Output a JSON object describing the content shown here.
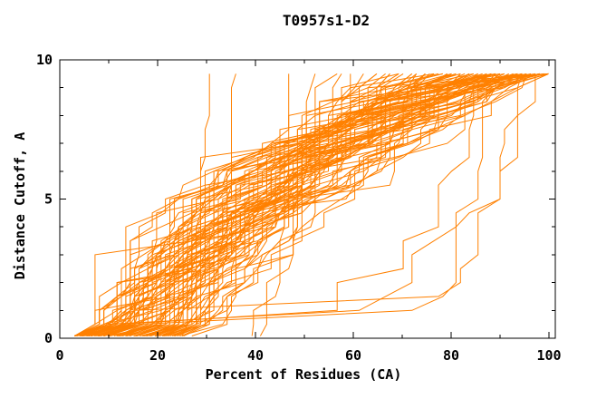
{
  "window": {
    "title": "T0957s1-D2"
  },
  "colors": {
    "curve": "#ff8000",
    "axis": "#000000",
    "background": "#ffffff",
    "text": "#000000"
  },
  "chart_data": {
    "type": "line",
    "title": "T0957s1-D2",
    "xlabel": "Percent of Residues (CA)",
    "ylabel": "Distance Cutoff, A",
    "xlim": [
      0,
      101.3
    ],
    "ylim": [
      0,
      10
    ],
    "x_major_ticks": [
      0,
      20,
      40,
      60,
      80,
      100
    ],
    "x_minor_ticks": [
      10,
      30,
      50,
      70,
      90
    ],
    "y_major_ticks": [
      0,
      5,
      10
    ],
    "y_minor_ticks": [
      1,
      2,
      3,
      4,
      6,
      7,
      8,
      9
    ],
    "grid": false,
    "legend": false,
    "series_color": "#ff8000",
    "cutoff_start": 0.5,
    "cutoff_end": 9.5,
    "cutoff_step": 0.5,
    "percent_quantum": 0.9,
    "curves_note": "Each curve is one model's GDT profile encoded as [percent_at_cutoff_0.5, percent_at_cutoff_9.5, shape_exponent]; step detail is deterministic from curve index.",
    "curves": [
      [
        7,
        80,
        1.2
      ],
      [
        8,
        85,
        1.4
      ],
      [
        8,
        90,
        1.1
      ],
      [
        9,
        78,
        1.6
      ],
      [
        9,
        95,
        1.3
      ],
      [
        10,
        70,
        1.0
      ],
      [
        10,
        88,
        1.8
      ],
      [
        10,
        97,
        1.5
      ],
      [
        11,
        75,
        1.2
      ],
      [
        11,
        92,
        2.0
      ],
      [
        12,
        68,
        0.9
      ],
      [
        12,
        85,
        1.5
      ],
      [
        12,
        99,
        1.7
      ],
      [
        13,
        80,
        1.1
      ],
      [
        13,
        90,
        1.9
      ],
      [
        14,
        73,
        1.3
      ],
      [
        14,
        95,
        1.6
      ],
      [
        15,
        65,
        0.8
      ],
      [
        15,
        85,
        1.2
      ],
      [
        15,
        100,
        1.8
      ],
      [
        16,
        78,
        1.4
      ],
      [
        16,
        92,
        1.0
      ],
      [
        17,
        70,
        1.7
      ],
      [
        17,
        88,
        1.3
      ],
      [
        18,
        82,
        1.5
      ],
      [
        18,
        96,
        1.1
      ],
      [
        19,
        75,
        1.9
      ],
      [
        19,
        90,
        1.4
      ],
      [
        20,
        68,
        1.0
      ],
      [
        20,
        85,
        1.6
      ],
      [
        20,
        100,
        1.2
      ],
      [
        21,
        80,
        1.8
      ],
      [
        21,
        94,
        1.3
      ],
      [
        22,
        72,
        1.1
      ],
      [
        22,
        88,
        1.5
      ],
      [
        23,
        78,
        2.0
      ],
      [
        23,
        97,
        1.4
      ],
      [
        24,
        70,
        1.2
      ],
      [
        24,
        86,
        1.7
      ],
      [
        25,
        92,
        1.0
      ],
      [
        25,
        80,
        1.5
      ],
      [
        26,
        75,
        1.3
      ],
      [
        26,
        90,
        1.8
      ],
      [
        27,
        84,
        1.1
      ],
      [
        27,
        98,
        1.5
      ],
      [
        28,
        78,
        1.9
      ],
      [
        28,
        92,
        1.2
      ],
      [
        29,
        86,
        1.6
      ],
      [
        30,
        80,
        1.0
      ],
      [
        30,
        95,
        1.4
      ],
      [
        31,
        88,
        1.8
      ],
      [
        32,
        82,
        1.2
      ],
      [
        9,
        82,
        1.4
      ],
      [
        11,
        86,
        1.0
      ],
      [
        13,
        94,
        1.6
      ],
      [
        15,
        76,
        1.8
      ],
      [
        17,
        96,
        1.2
      ],
      [
        19,
        84,
        1.4
      ],
      [
        21,
        76,
        1.0
      ],
      [
        23,
        90,
        1.6
      ],
      [
        25,
        98,
        1.8
      ],
      [
        27,
        88,
        1.2
      ],
      [
        29,
        94,
        1.5
      ],
      [
        31,
        96,
        1.1
      ],
      [
        8,
        74,
        1.3
      ],
      [
        10,
        80,
        1.7
      ],
      [
        12,
        90,
        1.3
      ],
      [
        14,
        84,
        1.9
      ],
      [
        16,
        98,
        1.4
      ],
      [
        18,
        76,
        1.2
      ],
      [
        20,
        92,
        1.7
      ],
      [
        22,
        84,
        1.3
      ],
      [
        24,
        96,
        1.9
      ],
      [
        26,
        82,
        1.4
      ],
      [
        28,
        88,
        1.0
      ],
      [
        30,
        90,
        1.7
      ],
      [
        12,
        76,
        2.1
      ],
      [
        16,
        86,
        2.2
      ],
      [
        20,
        78,
        2.0
      ],
      [
        24,
        92,
        2.1
      ],
      [
        10,
        98,
        2.8
      ],
      [
        13,
        99,
        3.0
      ],
      [
        16,
        97,
        2.6
      ],
      [
        18,
        100,
        3.2
      ],
      [
        22,
        99,
        2.9
      ],
      [
        26,
        100,
        3.4
      ],
      [
        14,
        96,
        2.7
      ],
      [
        19,
        98,
        3.1
      ],
      [
        6,
        56,
        0.7
      ],
      [
        7,
        60,
        0.6
      ],
      [
        8,
        64,
        0.8
      ],
      [
        9,
        58,
        0.55
      ],
      [
        10,
        66,
        0.75
      ],
      [
        11,
        62,
        0.65
      ],
      [
        12,
        72,
        0.7
      ],
      [
        13,
        66,
        0.6
      ],
      [
        9,
        90,
        0.15
      ],
      [
        11,
        94,
        0.12
      ],
      [
        13,
        88,
        0.18
      ],
      [
        15,
        92,
        0.1
      ],
      [
        26,
        36,
        0.3
      ],
      [
        40,
        47,
        0.2
      ],
      [
        23,
        31,
        0.45
      ],
      [
        42,
        52,
        0.5
      ]
    ]
  }
}
